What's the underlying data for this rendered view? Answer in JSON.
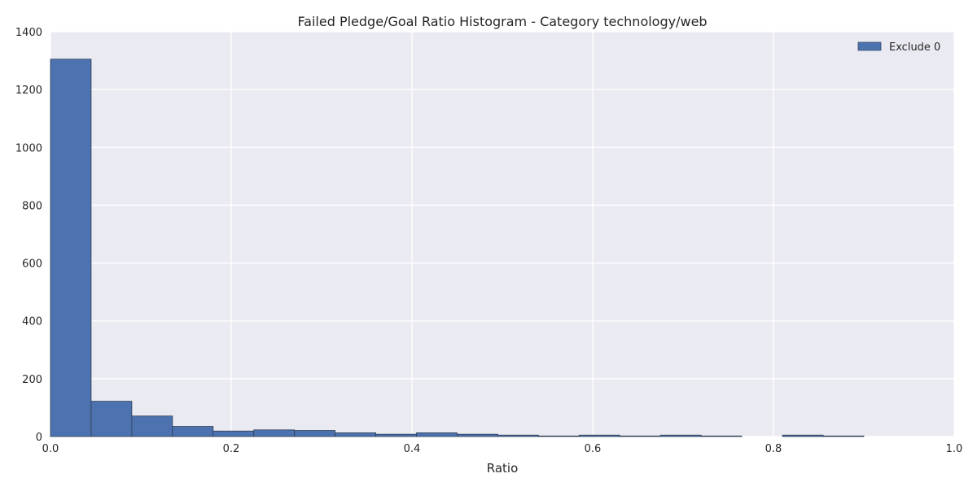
{
  "chart_data": {
    "type": "bar",
    "title": "Failed Pledge/Goal Ratio Histogram - Category technology/web",
    "xlabel": "Ratio",
    "ylabel": "",
    "xlim": [
      0.0,
      1.0
    ],
    "ylim": [
      0,
      1400
    ],
    "xticks": [
      "0.0",
      "0.2",
      "0.4",
      "0.6",
      "0.8",
      "1.0"
    ],
    "yticks": [
      "0",
      "200",
      "400",
      "600",
      "800",
      "1000",
      "1200",
      "1400"
    ],
    "grid": true,
    "legend_position": "top-right",
    "bin_edges": [
      0.0,
      0.045,
      0.09,
      0.135,
      0.18,
      0.225,
      0.27,
      0.315,
      0.36,
      0.405,
      0.45,
      0.495,
      0.54,
      0.585,
      0.63,
      0.675,
      0.72,
      0.765,
      0.81,
      0.855,
      0.9
    ],
    "series": [
      {
        "name": "Exclude 0",
        "color": "#4c72b0",
        "values": [
          1305,
          122,
          71,
          35,
          19,
          23,
          21,
          13,
          8,
          13,
          8,
          5,
          2,
          5,
          2,
          5,
          2,
          0,
          5,
          2
        ]
      }
    ],
    "background_color": "#eaeaf2"
  }
}
